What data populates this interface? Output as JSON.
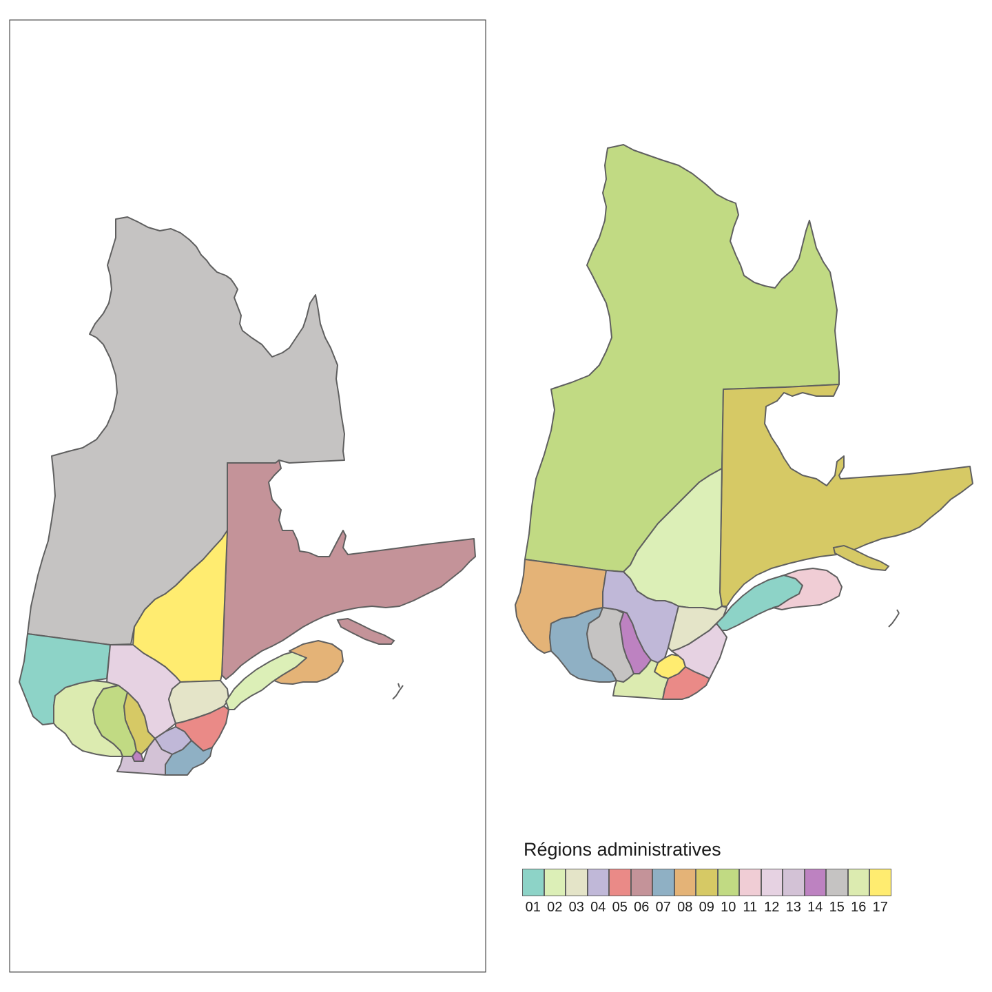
{
  "legend": {
    "title": "Régions administratives",
    "items": [
      {
        "code": "01",
        "color": "#8dd3c7"
      },
      {
        "code": "02",
        "color": "#dcefb7"
      },
      {
        "code": "03",
        "color": "#e4e4c8"
      },
      {
        "code": "04",
        "color": "#c0b8d8"
      },
      {
        "code": "05",
        "color": "#ea8a87"
      },
      {
        "code": "06",
        "color": "#c49399"
      },
      {
        "code": "07",
        "color": "#8fb0c4"
      },
      {
        "code": "08",
        "color": "#e4b377"
      },
      {
        "code": "09",
        "color": "#d6c965"
      },
      {
        "code": "10",
        "color": "#c1da83"
      },
      {
        "code": "11",
        "color": "#f0cdd5"
      },
      {
        "code": "12",
        "color": "#e6d2e2"
      },
      {
        "code": "13",
        "color": "#d3c2d6"
      },
      {
        "code": "14",
        "color": "#bd82c1"
      },
      {
        "code": "15",
        "color": "#c5c3c2"
      },
      {
        "code": "16",
        "color": "#dcebb0"
      },
      {
        "code": "17",
        "color": "#ffec70"
      }
    ]
  }
}
